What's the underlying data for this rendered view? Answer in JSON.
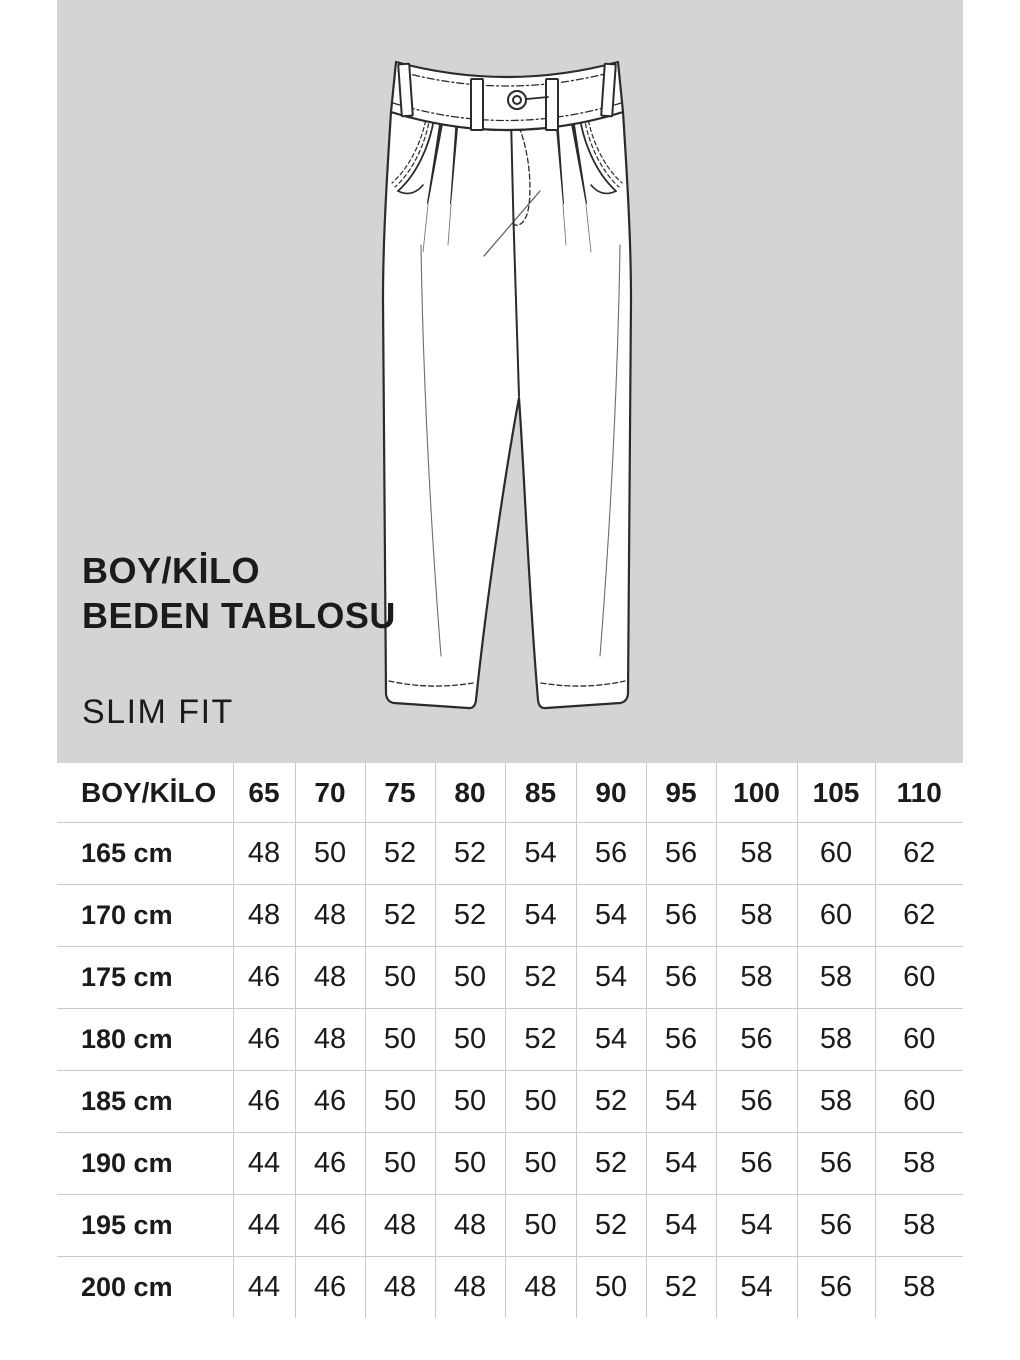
{
  "header_graphic": {
    "panel_color": "#d4d4d4",
    "illustration": "slim-fit-trousers-flat-sketch",
    "title_line1": "BOY/KİLO",
    "title_line2": "BEDEN TABLOSU",
    "subtitle": "SLIM FIT"
  },
  "size_table": {
    "corner_label": "BOY/KİLO",
    "weight_columns": [
      "65",
      "70",
      "75",
      "80",
      "85",
      "90",
      "95",
      "100",
      "105",
      "110"
    ],
    "rows": [
      {
        "height": "165 cm",
        "sizes": [
          "48",
          "50",
          "52",
          "52",
          "54",
          "56",
          "56",
          "58",
          "60",
          "62"
        ]
      },
      {
        "height": "170 cm",
        "sizes": [
          "48",
          "48",
          "52",
          "52",
          "54",
          "54",
          "56",
          "58",
          "60",
          "62"
        ]
      },
      {
        "height": "175 cm",
        "sizes": [
          "46",
          "48",
          "50",
          "50",
          "52",
          "54",
          "56",
          "58",
          "58",
          "60"
        ]
      },
      {
        "height": "180 cm",
        "sizes": [
          "46",
          "48",
          "50",
          "50",
          "52",
          "54",
          "56",
          "56",
          "58",
          "60"
        ]
      },
      {
        "height": "185 cm",
        "sizes": [
          "46",
          "46",
          "50",
          "50",
          "50",
          "52",
          "54",
          "56",
          "58",
          "60"
        ]
      },
      {
        "height": "190 cm",
        "sizes": [
          "44",
          "46",
          "50",
          "50",
          "50",
          "52",
          "54",
          "56",
          "56",
          "58"
        ]
      },
      {
        "height": "195 cm",
        "sizes": [
          "44",
          "46",
          "48",
          "48",
          "50",
          "52",
          "54",
          "54",
          "56",
          "58"
        ]
      },
      {
        "height": "200 cm",
        "sizes": [
          "44",
          "46",
          "48",
          "48",
          "48",
          "50",
          "52",
          "54",
          "56",
          "58"
        ]
      }
    ],
    "line_color": "#c9c9c9"
  }
}
